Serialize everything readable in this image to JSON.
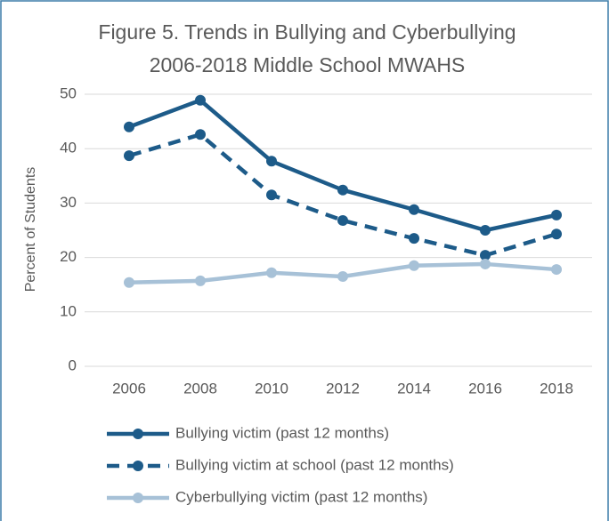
{
  "chart_data": {
    "type": "line",
    "title": [
      "Figure 5. Trends in Bullying and Cyberbullying",
      "2006-2018 Middle School MWAHS"
    ],
    "y_label": "Percent of Students",
    "categories": [
      "2006",
      "2008",
      "2010",
      "2012",
      "2014",
      "2016",
      "2018"
    ],
    "series": [
      {
        "name": "Bullying victim (past 12 months)",
        "color": "#1d5b89",
        "line_style": "solid",
        "values": [
          44.0,
          48.9,
          37.7,
          32.4,
          28.8,
          25.0,
          27.8
        ]
      },
      {
        "name": "Bullying victim at school (past 12 months)",
        "color": "#1d5b89",
        "line_style": "dashed",
        "values": [
          38.7,
          42.6,
          31.5,
          26.8,
          23.5,
          20.4,
          24.3
        ]
      },
      {
        "name": "Cyberbullying victim (past 12 months)",
        "color": "#a7c1d7",
        "line_style": "solid",
        "values": [
          15.4,
          15.7,
          17.2,
          16.5,
          18.5,
          18.8,
          17.8
        ]
      }
    ],
    "ylim": [
      0,
      50
    ],
    "yticks": [
      0,
      10,
      20,
      30,
      40,
      50
    ],
    "grid": true,
    "legend": "bottom"
  }
}
